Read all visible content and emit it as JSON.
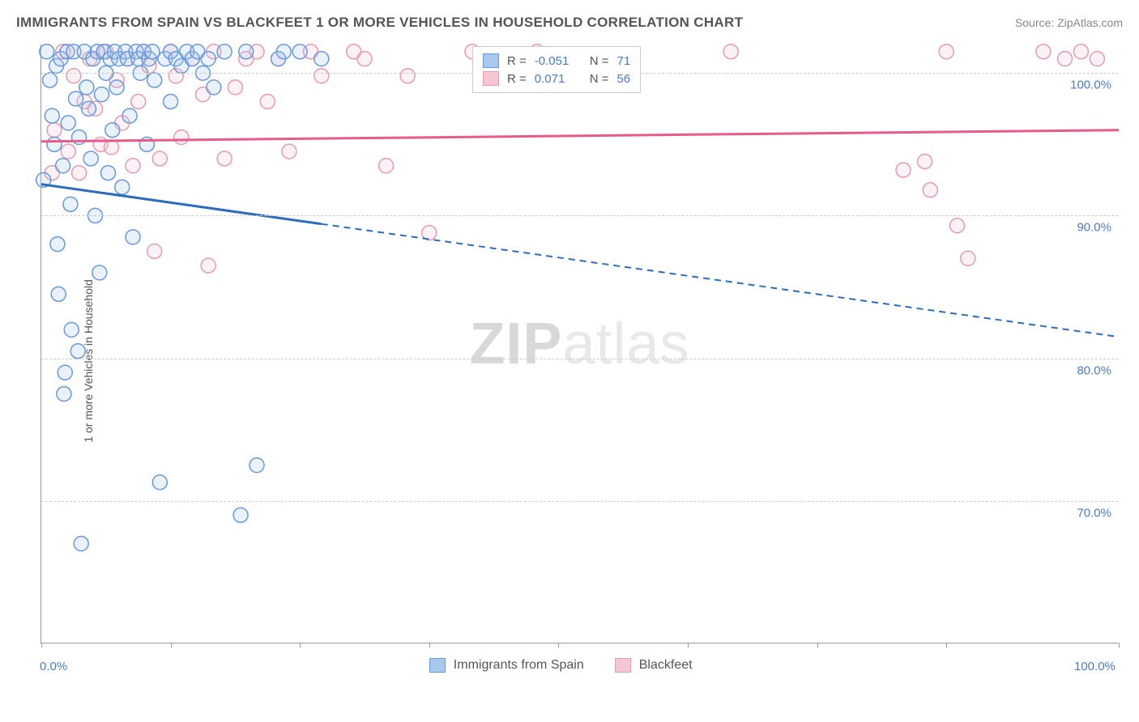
{
  "header": {
    "title": "IMMIGRANTS FROM SPAIN VS BLACKFEET 1 OR MORE VEHICLES IN HOUSEHOLD CORRELATION CHART",
    "source": "Source: ZipAtlas.com"
  },
  "watermark": {
    "zip": "ZIP",
    "atlas": "atlas"
  },
  "chart": {
    "type": "scatter",
    "y_axis_label": "1 or more Vehicles in Household",
    "xlim": [
      0,
      100
    ],
    "ylim": [
      60,
      102
    ],
    "x_ticks": [
      0,
      12,
      24,
      36,
      48,
      60,
      72,
      84,
      100
    ],
    "x_tick_labels": {
      "0": "0.0%",
      "100": "100.0%"
    },
    "y_gridlines": [
      70,
      80,
      90,
      100
    ],
    "y_tick_labels": {
      "70": "70.0%",
      "80": "80.0%",
      "90": "90.0%",
      "100": "100.0%"
    },
    "background_color": "#ffffff",
    "grid_color": "#cccccc",
    "axis_color": "#999999",
    "tick_label_color": "#4a7bc8",
    "marker_radius": 9,
    "marker_stroke_width": 1.5,
    "marker_fill_opacity": 0.25,
    "series": [
      {
        "name": "Immigrants from Spain",
        "stroke": "#6699dd",
        "fill": "#a8c8ee",
        "line_color": "#2b6cbf",
        "r_value": "-0.051",
        "n_value": "71",
        "trend_line": {
          "x1": 0,
          "y1": 92.2,
          "x2": 100,
          "y2": 81.5,
          "dash_from_x": 26
        },
        "points": [
          [
            0.2,
            92.5
          ],
          [
            0.5,
            101.5
          ],
          [
            0.8,
            99.5
          ],
          [
            1.0,
            97.0
          ],
          [
            1.2,
            95.0
          ],
          [
            1.4,
            100.5
          ],
          [
            1.5,
            88.0
          ],
          [
            1.6,
            84.5
          ],
          [
            1.8,
            101.0
          ],
          [
            2.0,
            93.5
          ],
          [
            2.1,
            77.5
          ],
          [
            2.2,
            79.0
          ],
          [
            2.4,
            101.5
          ],
          [
            2.5,
            96.5
          ],
          [
            2.7,
            90.8
          ],
          [
            2.8,
            82.0
          ],
          [
            3.0,
            101.5
          ],
          [
            3.2,
            98.2
          ],
          [
            3.4,
            80.5
          ],
          [
            3.5,
            95.5
          ],
          [
            3.7,
            67.0
          ],
          [
            4.0,
            101.5
          ],
          [
            4.2,
            99.0
          ],
          [
            4.4,
            97.5
          ],
          [
            4.6,
            94.0
          ],
          [
            4.8,
            101.0
          ],
          [
            5.0,
            90.0
          ],
          [
            5.2,
            101.5
          ],
          [
            5.4,
            86.0
          ],
          [
            5.6,
            98.5
          ],
          [
            5.8,
            101.5
          ],
          [
            6.0,
            100.0
          ],
          [
            6.2,
            93.0
          ],
          [
            6.4,
            101.0
          ],
          [
            6.6,
            96.0
          ],
          [
            6.8,
            101.5
          ],
          [
            7.0,
            99.0
          ],
          [
            7.2,
            101.0
          ],
          [
            7.5,
            92.0
          ],
          [
            7.8,
            101.5
          ],
          [
            8.0,
            101.0
          ],
          [
            8.2,
            97.0
          ],
          [
            8.5,
            88.5
          ],
          [
            8.8,
            101.5
          ],
          [
            9.0,
            101.0
          ],
          [
            9.2,
            100.0
          ],
          [
            9.5,
            101.5
          ],
          [
            9.8,
            95.0
          ],
          [
            10.0,
            101.0
          ],
          [
            10.3,
            101.5
          ],
          [
            10.5,
            99.5
          ],
          [
            11.0,
            71.3
          ],
          [
            11.5,
            101.0
          ],
          [
            12.0,
            98.0
          ],
          [
            12.0,
            101.5
          ],
          [
            12.5,
            101.0
          ],
          [
            13.0,
            100.5
          ],
          [
            13.5,
            101.5
          ],
          [
            14.0,
            101.0
          ],
          [
            14.5,
            101.5
          ],
          [
            15.0,
            100.0
          ],
          [
            15.5,
            101.0
          ],
          [
            16.0,
            99.0
          ],
          [
            17.0,
            101.5
          ],
          [
            18.5,
            69.0
          ],
          [
            19.0,
            101.5
          ],
          [
            20.0,
            72.5
          ],
          [
            22.0,
            101.0
          ],
          [
            22.5,
            101.5
          ],
          [
            24.0,
            101.5
          ],
          [
            26.0,
            101.0
          ]
        ]
      },
      {
        "name": "Blackfeet",
        "stroke": "#e89ab0",
        "fill": "#f5c7d3",
        "line_color": "#e85a8a",
        "r_value": "0.071",
        "n_value": "56",
        "trend_line": {
          "x1": 0,
          "y1": 95.2,
          "x2": 100,
          "y2": 96.0
        },
        "points": [
          [
            1.0,
            93.0
          ],
          [
            1.2,
            96.0
          ],
          [
            2.0,
            101.5
          ],
          [
            2.5,
            94.5
          ],
          [
            3.0,
            99.8
          ],
          [
            3.5,
            93.0
          ],
          [
            4.0,
            98.0
          ],
          [
            4.5,
            101.0
          ],
          [
            5.0,
            97.5
          ],
          [
            5.5,
            95.0
          ],
          [
            6.0,
            101.5
          ],
          [
            6.5,
            94.8
          ],
          [
            7.0,
            99.5
          ],
          [
            7.5,
            96.5
          ],
          [
            8.0,
            101.0
          ],
          [
            8.5,
            93.5
          ],
          [
            9.0,
            98.0
          ],
          [
            9.5,
            101.5
          ],
          [
            10.0,
            100.5
          ],
          [
            10.5,
            87.5
          ],
          [
            11.0,
            94.0
          ],
          [
            12.0,
            101.5
          ],
          [
            12.5,
            99.8
          ],
          [
            13.0,
            95.5
          ],
          [
            14.0,
            101.0
          ],
          [
            15.0,
            98.5
          ],
          [
            15.5,
            86.5
          ],
          [
            16.0,
            101.5
          ],
          [
            17.0,
            94.0
          ],
          [
            18.0,
            99.0
          ],
          [
            19.0,
            101.0
          ],
          [
            20.0,
            101.5
          ],
          [
            21.0,
            98.0
          ],
          [
            22.0,
            101.0
          ],
          [
            23.0,
            94.5
          ],
          [
            25.0,
            101.5
          ],
          [
            26.0,
            99.8
          ],
          [
            29.0,
            101.5
          ],
          [
            30.0,
            101.0
          ],
          [
            32.0,
            93.5
          ],
          [
            34.0,
            99.8
          ],
          [
            36.0,
            88.8
          ],
          [
            40.0,
            101.5
          ],
          [
            44.0,
            101.0
          ],
          [
            46.0,
            101.5
          ],
          [
            64.0,
            101.5
          ],
          [
            80.0,
            93.2
          ],
          [
            82.0,
            93.8
          ],
          [
            82.5,
            91.8
          ],
          [
            84.0,
            101.5
          ],
          [
            85.0,
            89.3
          ],
          [
            86.0,
            87.0
          ],
          [
            93.0,
            101.5
          ],
          [
            95.0,
            101.0
          ],
          [
            96.5,
            101.5
          ],
          [
            98.0,
            101.0
          ]
        ]
      }
    ]
  },
  "legend_top": {
    "r_label": "R =",
    "n_label": "N ="
  },
  "legend_bottom": {
    "items": [
      {
        "label": "Immigrants from Spain",
        "stroke": "#6699dd",
        "fill": "#a8c8ee"
      },
      {
        "label": "Blackfeet",
        "stroke": "#e89ab0",
        "fill": "#f5c7d3"
      }
    ]
  }
}
